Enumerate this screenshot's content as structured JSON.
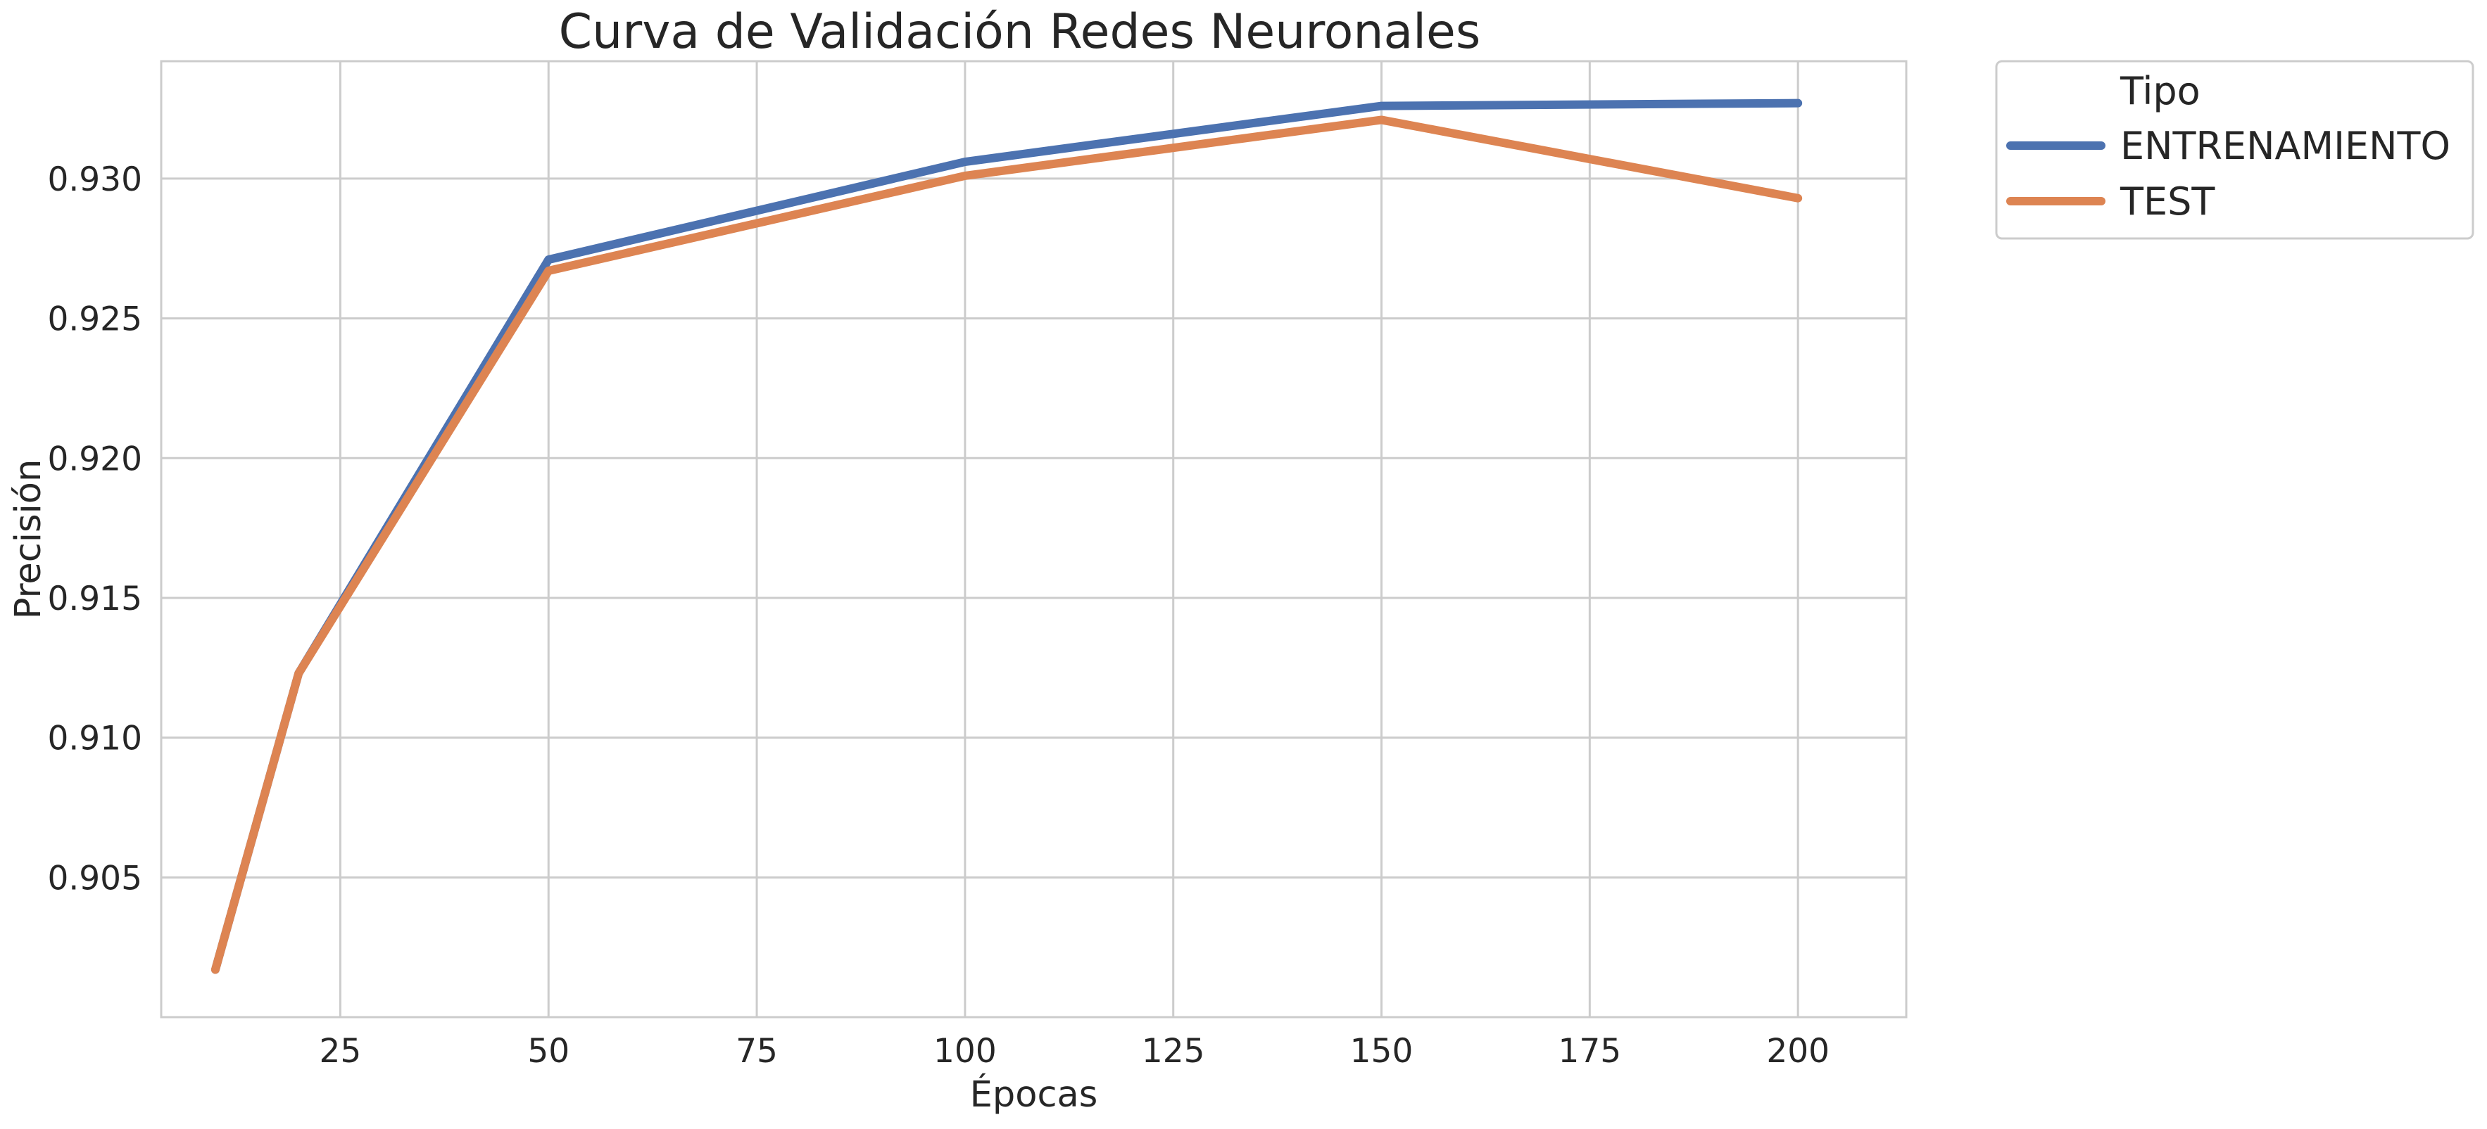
{
  "chart_data": {
    "type": "line",
    "title": "Curva de Validación Redes Neuronales",
    "xlabel": "Épocas",
    "ylabel": "Precisión",
    "x": [
      10,
      20,
      50,
      100,
      150,
      200
    ],
    "xlim": [
      3.5,
      213
    ],
    "ylim": [
      0.9,
      0.9342
    ],
    "xticks": [
      25,
      50,
      75,
      100,
      125,
      150,
      175,
      200
    ],
    "yticks": [
      0.905,
      0.91,
      0.915,
      0.92,
      0.925,
      0.93
    ],
    "ytick_labels": [
      "0.905",
      "0.910",
      "0.915",
      "0.920",
      "0.925",
      "0.930"
    ],
    "grid": true,
    "legend": {
      "title": "Tipo",
      "placement": "outside-top-right"
    },
    "series": [
      {
        "name": "ENTRENAMIENTO",
        "color": "#4c72b0",
        "values": [
          0.9017,
          0.9123,
          0.9271,
          0.9306,
          0.9326,
          0.9327
        ]
      },
      {
        "name": "TEST",
        "color": "#dd8452",
        "values": [
          0.9017,
          0.9123,
          0.9267,
          0.9301,
          0.9321,
          0.9293
        ]
      }
    ]
  }
}
